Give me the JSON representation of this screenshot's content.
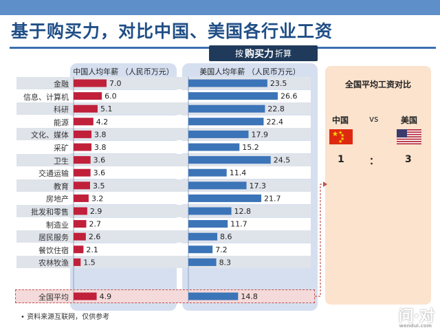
{
  "title": "基于购买力，对比中国、美国各行业工资",
  "ppp_badge": {
    "prefix": "按",
    "emphasis": "购买力",
    "suffix": "折算"
  },
  "colors": {
    "cn_bar": "#c0203a",
    "us_bar": "#3c74b8",
    "accent": "#1f4e86",
    "dashed": "#c0504d"
  },
  "chart_data": [
    {
      "type": "bar",
      "title": "中国人均年薪 （人民币万元）",
      "categories": [
        "金融",
        "信息、计算机",
        "科研",
        "能源",
        "文化、媒体",
        "采矿",
        "卫生",
        "交通运输",
        "教育",
        "房地产",
        "批发和零售",
        "制造业",
        "居民服务",
        "餐饮住宿",
        "农林牧渔",
        "全国平均"
      ],
      "values": [
        7.0,
        6.0,
        5.1,
        4.2,
        3.8,
        3.8,
        3.6,
        3.6,
        3.5,
        3.2,
        2.9,
        2.7,
        2.6,
        2.1,
        1.5,
        4.9
      ],
      "labels": [
        "7.0",
        "6.0",
        "5.1",
        "4.2",
        "3.8",
        "3.8",
        "3.6",
        "3.6",
        "3.5",
        "3.2",
        "2.9",
        "2.7",
        "2.6",
        "2.1",
        "1.5",
        "4.9"
      ],
      "xlim": [
        0,
        14
      ]
    },
    {
      "type": "bar",
      "title": "美国人均年薪 （人民币万元）",
      "categories": [
        "金融",
        "信息、计算机",
        "科研",
        "能源",
        "文化、媒体",
        "采矿",
        "卫生",
        "交通运输",
        "教育",
        "房地产",
        "批发和零售",
        "制造业",
        "居民服务",
        "餐饮住宿",
        "农林牧渔",
        "全国平均"
      ],
      "values": [
        23.5,
        26.6,
        22.8,
        22.4,
        17.9,
        15.2,
        24.5,
        11.4,
        17.3,
        21.7,
        12.8,
        11.7,
        8.6,
        7.2,
        8.3,
        14.8
      ],
      "labels": [
        "23.5",
        "26.6",
        "22.8",
        "22.4",
        "17.9",
        "15.2",
        "24.5",
        "11.4",
        "17.3",
        "21.7",
        "12.8",
        "11.7",
        "8.6",
        "7.2",
        "8.3",
        "14.8"
      ],
      "xlim": [
        0,
        27
      ]
    }
  ],
  "comparison": {
    "title": "全国平均工资对比",
    "left_label": "中国",
    "vs": "vs",
    "right_label": "美国",
    "left_value": "1",
    "sep": "：",
    "right_value": "3"
  },
  "source": "• 资料来源互联网，仅供参考",
  "watermark": {
    "main": "问·对",
    "sub": "wendui.com"
  }
}
